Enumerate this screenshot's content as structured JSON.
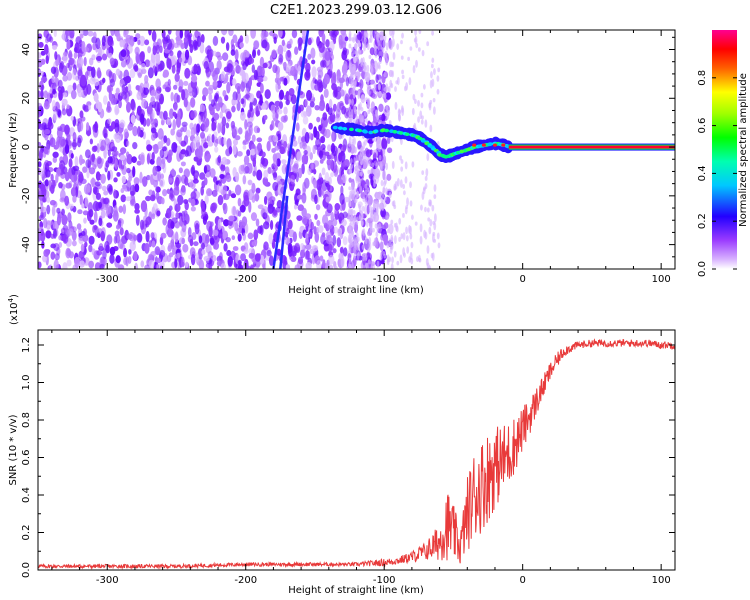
{
  "title": "C2E1.2023.299.03.12.G06",
  "chart_data": [
    {
      "type": "heatmap",
      "xlabel": "Height of straight line (km)",
      "ylabel": "Frequency (Hz)",
      "xlim": [
        -350,
        110
      ],
      "ylim": [
        -50,
        48
      ],
      "xticks": [
        -300,
        -200,
        -100,
        0,
        100
      ],
      "yticks": [
        -40,
        -20,
        0,
        20,
        40
      ],
      "colorbar": {
        "label": "Normalized spectral amplitude",
        "range": [
          0,
          1
        ],
        "ticks": [
          0.0,
          0.2,
          0.4,
          0.6,
          0.8
        ],
        "tick_labels": [
          "0.0",
          "0.2",
          "0.4",
          "0.6",
          "0.8"
        ],
        "colors": [
          "#ffffff",
          "#b85cff",
          "#3a00ff",
          "#00ffff",
          "#00ff00",
          "#ffff00",
          "#ff0000",
          "#ff00b0"
        ]
      },
      "features": {
        "noise_region_x": [
          -350,
          -95
        ],
        "noise_sparse_x": [
          -125,
          -60
        ],
        "signal_track": {
          "x": [
            -135,
            -120,
            -110,
            -100,
            -90,
            -80,
            -75,
            -70,
            -65,
            -60,
            -55,
            -50,
            -45,
            -40,
            -35,
            -30,
            -25,
            -20,
            -15,
            -10
          ],
          "y": [
            8,
            7,
            6,
            7,
            6,
            5,
            4,
            2,
            0,
            -3,
            -4,
            -3,
            -2,
            -1,
            0,
            0.5,
            1,
            1.5,
            1,
            0
          ]
        },
        "carrier_line": {
          "x": [
            -10,
            110
          ],
          "y": 0
        },
        "streaks": [
          {
            "x1": -180,
            "y1": -50,
            "x2": -155,
            "y2": 48
          },
          {
            "x1": -175,
            "y1": -50,
            "x2": -170,
            "y2": -20
          }
        ]
      }
    },
    {
      "type": "line",
      "xlabel": "Height of straight line (km)",
      "ylabel": "SNR (10 * v/v)",
      "multiplier": "(x10",
      "multiplier_exp": "4",
      "multiplier_close": ")",
      "xlim": [
        -350,
        110
      ],
      "ylim": [
        0,
        1.28
      ],
      "xticks": [
        -300,
        -200,
        -100,
        0,
        100
      ],
      "yticks": [
        0.0,
        0.2,
        0.4,
        0.6,
        0.8,
        1.0,
        1.2
      ],
      "ytick_labels": [
        "0.0",
        "0.2",
        "0.4",
        "0.6",
        "0.8",
        "1.0",
        "1.2"
      ],
      "series": [
        {
          "color": "#e83a3a",
          "x": [
            -350,
            -300,
            -250,
            -200,
            -150,
            -120,
            -100,
            -90,
            -80,
            -70,
            -60,
            -55,
            -50,
            -45,
            -40,
            -35,
            -30,
            -25,
            -20,
            -15,
            -10,
            -5,
            0,
            5,
            10,
            15,
            20,
            25,
            30,
            40,
            50,
            60,
            70,
            80,
            90,
            100,
            110
          ],
          "y": [
            0.02,
            0.02,
            0.02,
            0.03,
            0.03,
            0.03,
            0.04,
            0.05,
            0.07,
            0.1,
            0.15,
            0.25,
            0.2,
            0.12,
            0.3,
            0.4,
            0.45,
            0.5,
            0.55,
            0.58,
            0.62,
            0.68,
            0.75,
            0.82,
            0.9,
            0.98,
            1.06,
            1.12,
            1.17,
            1.2,
            1.21,
            1.21,
            1.21,
            1.21,
            1.21,
            1.2,
            1.2
          ],
          "noise_amplitude": [
            0.01,
            0.01,
            0.01,
            0.01,
            0.01,
            0.01,
            0.02,
            0.02,
            0.03,
            0.05,
            0.1,
            0.2,
            0.15,
            0.1,
            0.2,
            0.25,
            0.25,
            0.25,
            0.22,
            0.2,
            0.18,
            0.15,
            0.12,
            0.1,
            0.08,
            0.06,
            0.05,
            0.04,
            0.03,
            0.02,
            0.02,
            0.02,
            0.02,
            0.02,
            0.02,
            0.02,
            0.02
          ]
        }
      ]
    }
  ]
}
